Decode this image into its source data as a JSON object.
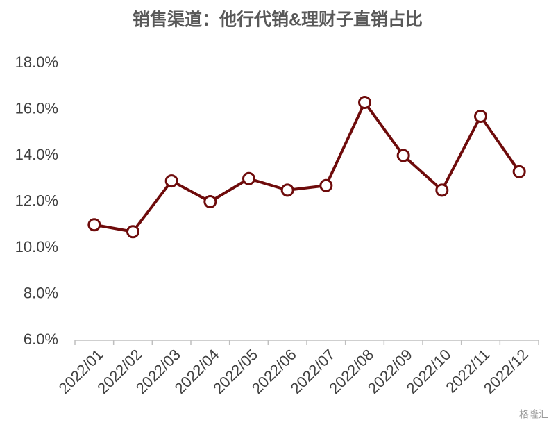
{
  "chart_data": {
    "type": "line",
    "title": "销售渠道：他行代销&理财子直销占比",
    "categories": [
      "2022/01",
      "2022/02",
      "2022/03",
      "2022/04",
      "2022/05",
      "2022/06",
      "2022/07",
      "2022/08",
      "2022/09",
      "2022/10",
      "2022/11",
      "2022/12"
    ],
    "series": [
      {
        "color": "#6e0b0b",
        "values": [
          11.0,
          10.7,
          12.9,
          12.0,
          13.0,
          12.5,
          12.7,
          16.3,
          14.0,
          12.5,
          15.7,
          13.3
        ]
      }
    ],
    "ylim": [
      6,
      18
    ],
    "yticks": [
      {
        "value": 6,
        "label": "6.0%"
      },
      {
        "value": 8,
        "label": "8.0%"
      },
      {
        "value": 10,
        "label": "10.0%"
      },
      {
        "value": 12,
        "label": "12.0%"
      },
      {
        "value": 14,
        "label": "14.0%"
      },
      {
        "value": 16,
        "label": "16.0%"
      },
      {
        "value": 18,
        "label": "18.0%"
      }
    ],
    "grid": false,
    "watermark": "格隆汇"
  }
}
